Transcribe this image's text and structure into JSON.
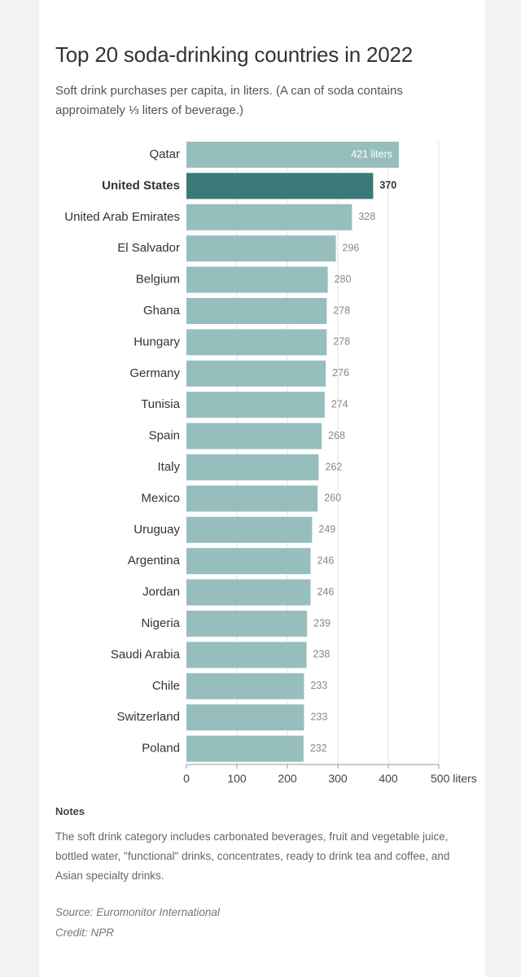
{
  "header": {
    "title": "Top 20 soda-drinking countries in 2022",
    "subtitle": "Soft drink purchases per capita, in liters. (A can of soda contains approimately ⅓ liters of beverage.)"
  },
  "chart_data": {
    "type": "bar",
    "orientation": "horizontal",
    "categories": [
      "Qatar",
      "United States",
      "United Arab Emirates",
      "El Salvador",
      "Belgium",
      "Ghana",
      "Hungary",
      "Germany",
      "Tunisia",
      "Spain",
      "Italy",
      "Mexico",
      "Uruguay",
      "Argentina",
      "Jordan",
      "Nigeria",
      "Saudi Arabia",
      "Chile",
      "Switzerland",
      "Poland"
    ],
    "values": [
      421,
      370,
      328,
      296,
      280,
      278,
      278,
      276,
      274,
      268,
      262,
      260,
      249,
      246,
      246,
      239,
      238,
      233,
      233,
      232
    ],
    "value_labels": [
      "421 liters",
      "370",
      "328",
      "296",
      "280",
      "278",
      "278",
      "276",
      "274",
      "268",
      "262",
      "260",
      "249",
      "246",
      "246",
      "239",
      "238",
      "233",
      "233",
      "232"
    ],
    "highlight": "United States",
    "xlim": [
      0,
      500
    ],
    "x_ticks": [
      0,
      100,
      200,
      300,
      400,
      500
    ],
    "x_tick_labels": [
      "0",
      "100",
      "200",
      "300",
      "400",
      "500 liters"
    ],
    "grid": true,
    "colors": {
      "bar": "#96bebd",
      "highlight": "#3a7a78",
      "grid": "#e2e2e2"
    }
  },
  "notes": {
    "heading": "Notes",
    "text": "The soft drink category includes carbonated beverages, fruit and vegetable juice, bottled water, \"functional\" drinks, concentrates, ready to drink tea and coffee, and Asian specialty drinks."
  },
  "source": "Source: Euromonitor International",
  "credit": "Credit: NPR"
}
